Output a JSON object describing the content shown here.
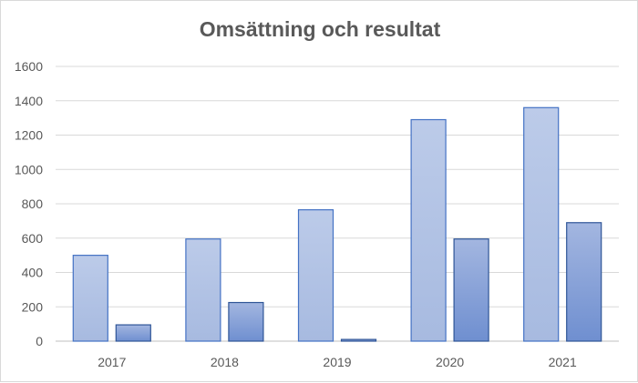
{
  "chart_data": {
    "type": "bar",
    "title": "Omsättning och resultat",
    "categories": [
      "2017",
      "2018",
      "2019",
      "2020",
      "2021"
    ],
    "series": [
      {
        "values": [
          500,
          595,
          765,
          1290,
          1360
        ]
      },
      {
        "values": [
          95,
          225,
          10,
          595,
          690
        ]
      }
    ],
    "ylim": [
      0,
      1600
    ],
    "yticks": [
      "0",
      "200",
      "400",
      "600",
      "800",
      "1000",
      "1200",
      "1400",
      "1600"
    ],
    "grid": true,
    "colors": {
      "series1_fill_top": "#bccbe9",
      "series1_fill_bottom": "#a7bae0",
      "series1_stroke": "#4472c4",
      "series2_fill_top": "#a3b6e0",
      "series2_fill_bottom": "#6f8fd0",
      "series2_stroke": "#2f5597",
      "grid": "#d9d9d9"
    }
  }
}
